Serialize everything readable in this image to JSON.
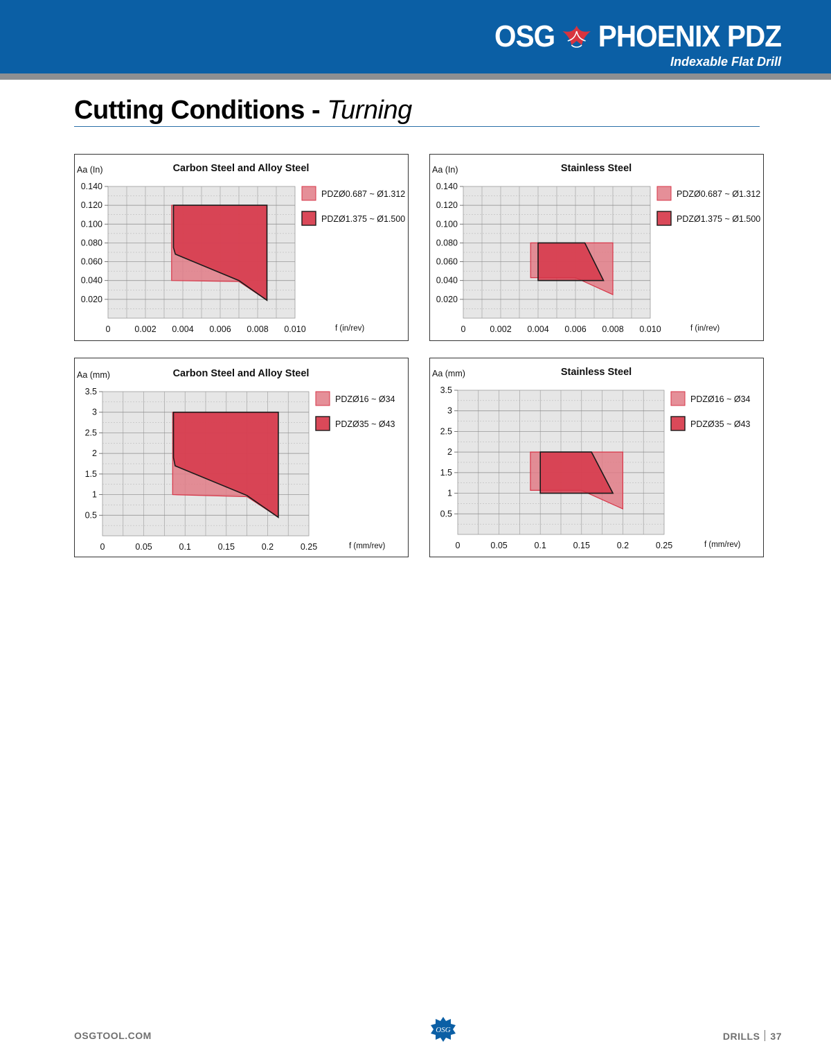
{
  "header": {
    "brand_left": "OSG",
    "brand_right": "PHOENIX PDZ",
    "tagline": "Indexable Flat Drill",
    "logo_icon": "phoenix-icon",
    "banner_color": "#0b5fa5"
  },
  "page": {
    "title_main": "Cutting Conditions - ",
    "title_sub": "Turning"
  },
  "colors": {
    "light_series": "#e07b86",
    "dark_series": "#d63547",
    "plot_bg": "#e6e6e6"
  },
  "chart_data": [
    {
      "type": "area",
      "title": "Carbon Steel and Alloy Steel",
      "ylabel": "Aa (In)",
      "xlabel": "f (in/rev)",
      "xlim": [
        0,
        0.01
      ],
      "ylim": [
        0,
        0.14
      ],
      "xticks": [
        "0",
        "0.002",
        "0.004",
        "0.006",
        "0.008",
        "0.010"
      ],
      "yticks": [
        "0.020",
        "0.040",
        "0.060",
        "0.080",
        "0.100",
        "0.120",
        "0.140"
      ],
      "legend_position": "right",
      "series": [
        {
          "name": "PDZØ0.687 ~ Ø1.312",
          "points": [
            [
              0.0034,
              0.04
            ],
            [
              0.0034,
              0.12
            ],
            [
              0.0085,
              0.12
            ],
            [
              0.0085,
              0.019
            ],
            [
              0.007,
              0.039
            ]
          ]
        },
        {
          "name": "PDZØ1.375 ~ Ø1.500",
          "points": [
            [
              0.0035,
              0.12
            ],
            [
              0.0085,
              0.12
            ],
            [
              0.0085,
              0.019
            ],
            [
              0.007,
              0.04
            ],
            [
              0.0036,
              0.068
            ],
            [
              0.0035,
              0.075
            ]
          ]
        }
      ]
    },
    {
      "type": "area",
      "title": "Stainless Steel",
      "ylabel": "Aa (In)",
      "xlabel": "f (in/rev)",
      "xlim": [
        0,
        0.01
      ],
      "ylim": [
        0,
        0.14
      ],
      "xticks": [
        "0",
        "0.002",
        "0.004",
        "0.006",
        "0.008",
        "0.010"
      ],
      "yticks": [
        "0.020",
        "0.040",
        "0.060",
        "0.080",
        "0.100",
        "0.120",
        "0.140"
      ],
      "legend_position": "right",
      "series": [
        {
          "name": "PDZØ0.687 ~ Ø1.312",
          "points": [
            [
              0.0036,
              0.043
            ],
            [
              0.0036,
              0.08
            ],
            [
              0.008,
              0.08
            ],
            [
              0.008,
              0.025
            ],
            [
              0.006,
              0.043
            ]
          ]
        },
        {
          "name": "PDZØ1.375 ~ Ø1.500",
          "points": [
            [
              0.004,
              0.04
            ],
            [
              0.004,
              0.08
            ],
            [
              0.0065,
              0.08
            ],
            [
              0.0075,
              0.04
            ]
          ]
        }
      ]
    },
    {
      "type": "area",
      "title": "Carbon Steel and Alloy Steel",
      "ylabel": "Aa (mm)",
      "xlabel": "f (mm/rev)",
      "xlim": [
        0,
        0.25
      ],
      "ylim": [
        0,
        3.5
      ],
      "xticks": [
        "0",
        "0.05",
        "0.1",
        "0.15",
        "0.2",
        "0.25"
      ],
      "yticks": [
        "0.5",
        "1",
        "1.5",
        "2",
        "2.5",
        "3",
        "3.5"
      ],
      "legend_position": "right",
      "series": [
        {
          "name": "PDZØ16 ~ Ø34",
          "points": [
            [
              0.085,
              1.0
            ],
            [
              0.085,
              3.0
            ],
            [
              0.213,
              3.0
            ],
            [
              0.213,
              0.45
            ],
            [
              0.175,
              0.95
            ]
          ]
        },
        {
          "name": "PDZØ35 ~ Ø43",
          "points": [
            [
              0.086,
              3.0
            ],
            [
              0.213,
              3.0
            ],
            [
              0.213,
              0.45
            ],
            [
              0.175,
              0.98
            ],
            [
              0.088,
              1.7
            ],
            [
              0.086,
              1.9
            ]
          ]
        }
      ]
    },
    {
      "type": "area",
      "title": "Stainless Steel",
      "ylabel": "Aa (mm)",
      "xlabel": "f (mm/rev)",
      "xlim": [
        0,
        0.25
      ],
      "ylim": [
        0,
        3.5
      ],
      "xticks": [
        "0",
        "0.05",
        "0.1",
        "0.15",
        "0.2",
        "0.25"
      ],
      "yticks": [
        "0.5",
        "1",
        "1.5",
        "2",
        "2.5",
        "3",
        "3.5"
      ],
      "legend_position": "right",
      "series": [
        {
          "name": "PDZØ16 ~ Ø34",
          "points": [
            [
              0.088,
              1.07
            ],
            [
              0.088,
              2.0
            ],
            [
              0.2,
              2.0
            ],
            [
              0.2,
              0.62
            ],
            [
              0.15,
              1.07
            ]
          ]
        },
        {
          "name": "PDZØ35 ~ Ø43",
          "points": [
            [
              0.1,
              1.0
            ],
            [
              0.1,
              2.0
            ],
            [
              0.162,
              2.0
            ],
            [
              0.188,
              1.0
            ]
          ]
        }
      ]
    }
  ],
  "footer": {
    "website": "OSGTOOL.COM",
    "section": "DRILLS",
    "page_number": "37",
    "logo_icon": "osg-logo-icon",
    "logo_text": "OSG"
  }
}
